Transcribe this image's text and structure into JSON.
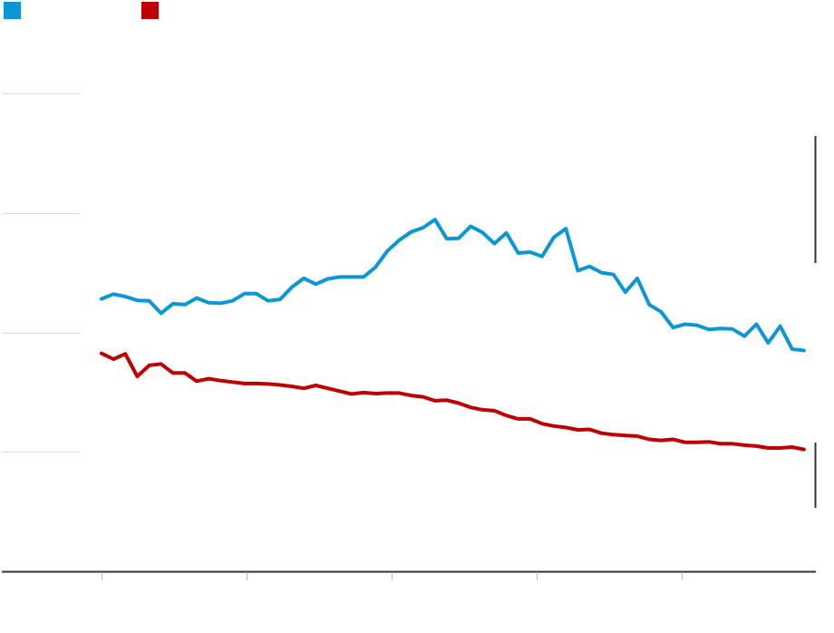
{
  "chart_data": {
    "type": "line",
    "colors": {
      "series_a": "#0b96d8",
      "series_b": "#c00000",
      "grid": "#dddddd",
      "axis": "#333333"
    },
    "legend_position": "top-left",
    "grid": true,
    "ylim": [
      0,
      100
    ],
    "xlim": [
      0,
      100
    ],
    "legend": [
      {
        "name": "",
        "color": "#0b96d8"
      },
      {
        "name": "",
        "color": "#c00000"
      }
    ],
    "series": [
      {
        "color": "#0b96d8",
        "x": [
          0,
          1.67,
          3.33,
          5,
          6.67,
          8.33,
          10,
          11.67,
          13.33,
          15,
          16.67,
          18.33,
          20,
          21.67,
          23.33,
          25,
          26.67,
          28.33,
          30,
          31.67,
          33.33,
          35,
          36.67,
          38.33,
          40,
          41.67,
          43.33,
          45,
          46.67,
          48.33,
          50,
          51.67,
          53.33,
          55,
          56.67,
          58.33,
          60,
          61.67,
          63.33,
          65,
          66.67,
          68.33,
          70,
          71.67,
          73.33,
          75,
          76.67,
          78.33,
          80,
          81.67,
          83.33,
          85,
          86.67,
          88.33,
          90,
          91.67,
          93.33,
          95,
          96.67,
          98.33
        ],
        "values": [
          57.0,
          58.0,
          57.5,
          56.7,
          56.6,
          54.0,
          56.0,
          55.8,
          57.2,
          56.2,
          56.1,
          56.6,
          58.1,
          58.1,
          56.6,
          56.9,
          59.5,
          61.3,
          60.1,
          61.2,
          61.6,
          61.6,
          61.6,
          63.6,
          67.0,
          69.3,
          71.0,
          71.9,
          73.6,
          69.6,
          69.7,
          72.2,
          70.9,
          68.6,
          70.8,
          66.6,
          66.8,
          65.9,
          69.9,
          71.7,
          62.9,
          63.8,
          62.5,
          62.1,
          58.4,
          61.3,
          55.8,
          54.3,
          51.0,
          51.7,
          51.5,
          50.6,
          50.8,
          50.7,
          49.2,
          51.7,
          47.8,
          51.3,
          46.5,
          46.2
        ]
      },
      {
        "color": "#c00000",
        "x": [
          0,
          1.67,
          3.33,
          5,
          6.67,
          8.33,
          10,
          11.67,
          13.33,
          15,
          16.67,
          18.33,
          20,
          21.67,
          23.33,
          25,
          26.67,
          28.33,
          30,
          31.67,
          33.33,
          35,
          36.67,
          38.33,
          40,
          41.67,
          43.33,
          45,
          46.67,
          48.33,
          50,
          51.67,
          53.33,
          55,
          56.67,
          58.33,
          60,
          61.67,
          63.33,
          65,
          66.67,
          68.33,
          70,
          71.67,
          73.33,
          75,
          76.67,
          78.33,
          80,
          81.67,
          83.33,
          85,
          86.67,
          88.33,
          90,
          91.67,
          93.33,
          95,
          96.67,
          98.33
        ],
        "values": [
          45.6,
          44.4,
          45.5,
          40.8,
          43.1,
          43.4,
          41.5,
          41.5,
          39.8,
          40.3,
          39.9,
          39.6,
          39.3,
          39.3,
          39.2,
          39.0,
          38.7,
          38.3,
          38.9,
          38.3,
          37.7,
          37.1,
          37.4,
          37.2,
          37.3,
          37.3,
          36.8,
          36.5,
          35.7,
          35.8,
          35.2,
          34.3,
          33.8,
          33.6,
          32.6,
          31.9,
          31.9,
          30.9,
          30.4,
          30.1,
          29.6,
          29.7,
          28.9,
          28.6,
          28.4,
          28.3,
          27.6,
          27.4,
          27.6,
          27.0,
          27.0,
          27.1,
          26.7,
          26.7,
          26.4,
          26.2,
          25.8,
          25.8,
          26.0,
          25.5
        ]
      }
    ]
  }
}
